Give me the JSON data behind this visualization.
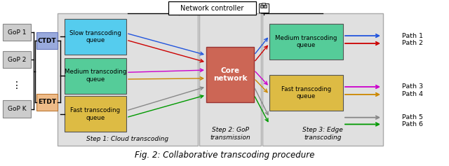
{
  "fig_width": 6.4,
  "fig_height": 2.37,
  "dpi": 100,
  "bg_color": "#ffffff",
  "caption": "Fig. 2: Collaborative transcoding procedure",
  "network_controller_label": "Network controller",
  "gop_labels": [
    "GoP 1",
    "GoP 2",
    "⋮",
    "GoP K"
  ],
  "ctdt_label": "CTDT",
  "etdt_label": "ETDT",
  "cloud_queues": [
    "Slow transcoding\nqueue",
    "Medium transcoding\nqueue",
    "Fast transcoding\nqueue"
  ],
  "cloud_queue_colors": [
    "#55ccee",
    "#55cc99",
    "#ddbb44"
  ],
  "core_network_label": "Core\nnetwork",
  "core_network_color": "#cc6655",
  "edge_queues": [
    "Medium transcoding\nqueue",
    "Fast transcoding\nqueue"
  ],
  "edge_queue_colors": [
    "#55cc99",
    "#ddbb44"
  ],
  "step1_label": "Step 1: Cloud transcoding",
  "step2_label": "Step 2: GoP\ntransmission",
  "step3_label": "Step 3: Edge\ntranscoding",
  "paths": [
    "Path 1",
    "Path 2",
    "Path 3",
    "Path 4",
    "Path 5",
    "Path 6"
  ],
  "path_colors": [
    "#2255dd",
    "#cc0000",
    "#cc00cc",
    "#cc8800",
    "#888888",
    "#009900"
  ],
  "panel_color": "#e0e0e0",
  "ctdt_color": "#99aadd",
  "etdt_color": "#eebb88",
  "gop_color": "#cccccc",
  "gop_border": "#888888",
  "nc_line_color": "#000000"
}
